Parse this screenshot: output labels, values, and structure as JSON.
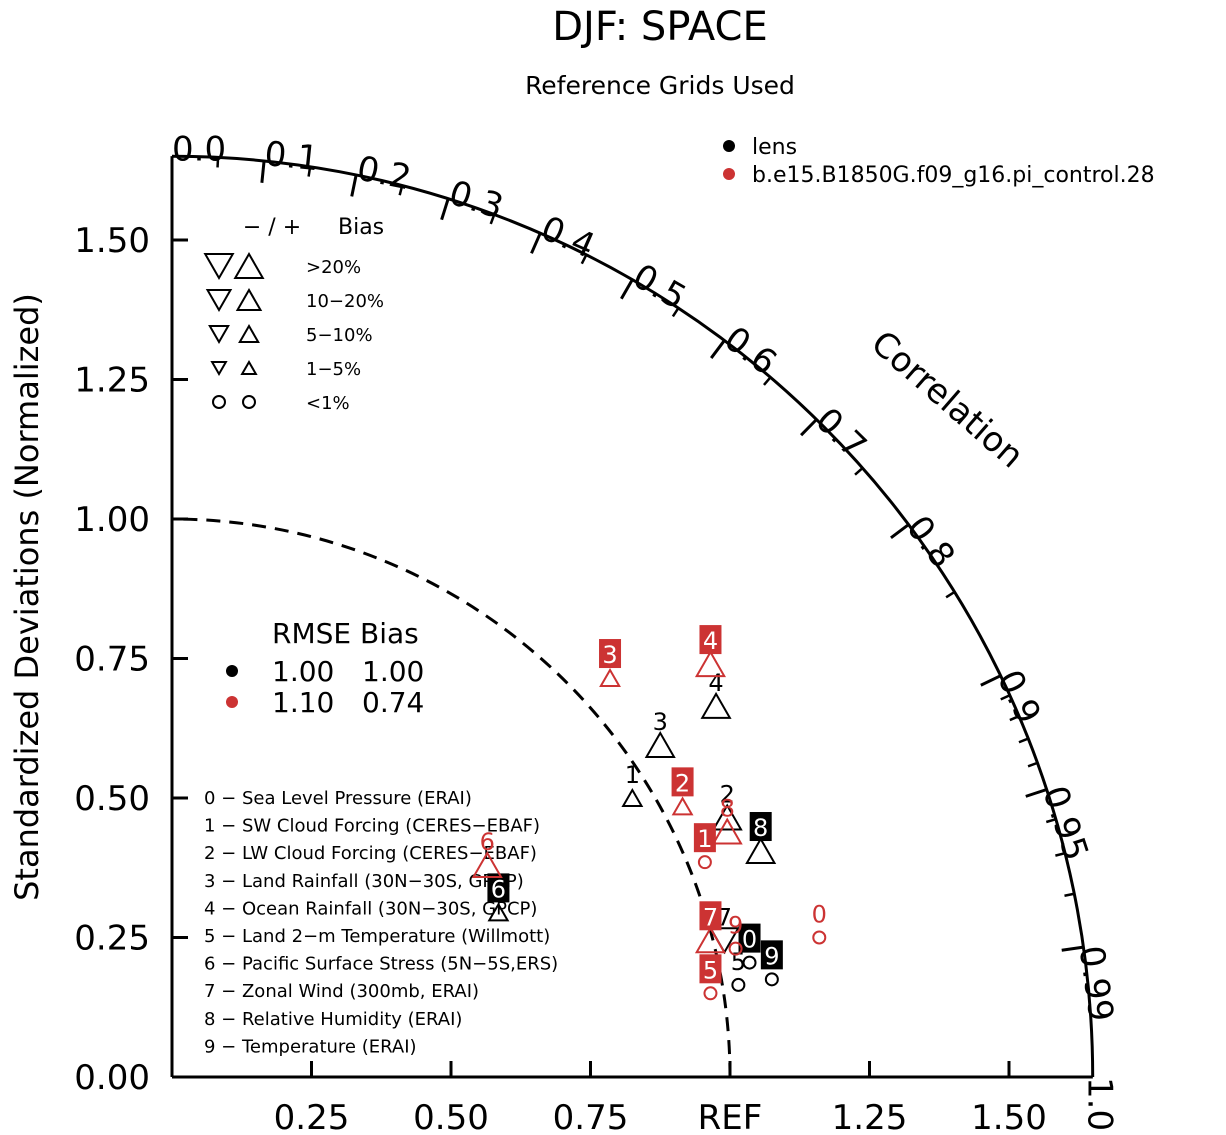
{
  "chart_data": {
    "type": "taylor",
    "title": "DJF: SPACE",
    "subtitle": "Reference Grids Used",
    "ylabel": "Standardized Deviations (Normalized)",
    "xlabel": "",
    "correlation_label": "Correlation",
    "std_range": [
      0,
      1.65
    ],
    "x_ticks": [
      {
        "value": 0.25,
        "label": "0.25"
      },
      {
        "value": 0.5,
        "label": "0.50"
      },
      {
        "value": 0.75,
        "label": "0.75"
      },
      {
        "value": 1.0,
        "label": "REF"
      },
      {
        "value": 1.25,
        "label": "1.25"
      },
      {
        "value": 1.5,
        "label": "1.50"
      }
    ],
    "y_ticks": [
      {
        "value": 0.0,
        "label": "0.00"
      },
      {
        "value": 0.25,
        "label": "0.25"
      },
      {
        "value": 0.5,
        "label": "0.50"
      },
      {
        "value": 0.75,
        "label": "0.75"
      },
      {
        "value": 1.0,
        "label": "1.00"
      },
      {
        "value": 1.25,
        "label": "1.25"
      },
      {
        "value": 1.5,
        "label": "1.50"
      }
    ],
    "correlation_ticks": [
      {
        "value": 0.0,
        "label": "0.0"
      },
      {
        "value": 0.1,
        "label": "0.1"
      },
      {
        "value": 0.2,
        "label": "0.2"
      },
      {
        "value": 0.3,
        "label": "0.3"
      },
      {
        "value": 0.4,
        "label": "0.4"
      },
      {
        "value": 0.5,
        "label": "0.5"
      },
      {
        "value": 0.6,
        "label": "0.6"
      },
      {
        "value": 0.7,
        "label": "0.7"
      },
      {
        "value": 0.8,
        "label": "0.8"
      },
      {
        "value": 0.9,
        "label": "0.9"
      },
      {
        "value": 0.95,
        "label": "0.95"
      },
      {
        "value": 0.99,
        "label": "0.99"
      },
      {
        "value": 1.0,
        "label": "1.0"
      }
    ],
    "series": [
      {
        "name": "lens",
        "color": "#000000",
        "rmse": "1.00",
        "bias": "1.00",
        "points": [
          {
            "id": "0",
            "x": 1.035,
            "y": 0.205,
            "symbol": "circle",
            "size": 0,
            "boxed": true
          },
          {
            "id": "1",
            "x": 0.825,
            "y": 0.5,
            "symbol": "up",
            "size": 1,
            "boxed": false
          },
          {
            "id": "2",
            "x": 0.995,
            "y": 0.465,
            "symbol": "up",
            "size": 3,
            "boxed": false
          },
          {
            "id": "3",
            "x": 0.875,
            "y": 0.595,
            "symbol": "up",
            "size": 3,
            "boxed": false
          },
          {
            "id": "4",
            "x": 0.975,
            "y": 0.665,
            "symbol": "up",
            "size": 3,
            "boxed": false
          },
          {
            "id": "5",
            "x": 1.015,
            "y": 0.165,
            "symbol": "circle",
            "size": 0,
            "boxed": false
          },
          {
            "id": "6",
            "x": 0.585,
            "y": 0.295,
            "symbol": "up",
            "size": 1,
            "boxed": true
          },
          {
            "id": "7",
            "x": 0.99,
            "y": 0.245,
            "symbol": "down",
            "size": 3,
            "boxed": false
          },
          {
            "id": "8",
            "x": 1.055,
            "y": 0.405,
            "symbol": "up",
            "size": 3,
            "boxed": true
          },
          {
            "id": "9",
            "x": 1.075,
            "y": 0.175,
            "symbol": "circle",
            "size": 0,
            "boxed": true
          }
        ]
      },
      {
        "name": "b.e15.B1850G.f09_g16.pi_control.28",
        "color": "#cc3333",
        "rmse": "1.10",
        "bias": "0.74",
        "points": [
          {
            "id": "0",
            "x": 1.16,
            "y": 0.25,
            "symbol": "circle",
            "size": 0,
            "boxed": false
          },
          {
            "id": "1",
            "x": 0.955,
            "y": 0.385,
            "symbol": "circle",
            "size": 0,
            "boxed": true
          },
          {
            "id": "2",
            "x": 0.915,
            "y": 0.485,
            "symbol": "up",
            "size": 1,
            "boxed": true
          },
          {
            "id": "3",
            "x": 0.785,
            "y": 0.715,
            "symbol": "up",
            "size": 1,
            "boxed": true
          },
          {
            "id": "4",
            "x": 0.965,
            "y": 0.74,
            "symbol": "up",
            "size": 3,
            "boxed": true
          },
          {
            "id": "5",
            "x": 0.965,
            "y": 0.15,
            "symbol": "circle",
            "size": 0,
            "boxed": true
          },
          {
            "id": "6",
            "x": 0.565,
            "y": 0.38,
            "symbol": "up",
            "size": 3,
            "boxed": false
          },
          {
            "id": "7",
            "x": 0.965,
            "y": 0.245,
            "symbol": "up",
            "size": 3,
            "boxed": true
          },
          {
            "id": "8",
            "x": 0.995,
            "y": 0.44,
            "symbol": "up",
            "size": 3,
            "boxed": false
          },
          {
            "id": "9",
            "x": 1.01,
            "y": 0.23,
            "symbol": "circle",
            "size": 0,
            "boxed": false
          }
        ]
      }
    ],
    "bias_legend": {
      "header_signs": "− / +",
      "header_label": "Bias",
      "rows": [
        {
          "label": ">20%",
          "symbol": "triangle",
          "size": 3
        },
        {
          "label": "10−20%",
          "symbol": "triangle",
          "size": 2
        },
        {
          "label": "5−10%",
          "symbol": "triangle",
          "size": 1
        },
        {
          "label": "1−5%",
          "symbol": "triangle",
          "size": 0
        },
        {
          "label": "<1%",
          "symbol": "circle",
          "size": 0
        }
      ]
    },
    "stats_header": "RMSE Bias",
    "variables": [
      "0 − Sea Level Pressure (ERAI)",
      "1 − SW Cloud Forcing (CERES−EBAF)",
      "2 − LW Cloud Forcing (CERES−EBAF)",
      "3 − Land Rainfall (30N−30S, GPCP)",
      "4 − Ocean Rainfall (30N−30S, GPCP)",
      "5 − Land 2−m Temperature (Willmott)",
      "6 − Pacific Surface Stress (5N−5S,ERS)",
      "7 − Zonal Wind (300mb, ERAI)",
      "8 − Relative Humidity (ERAI)",
      "9 − Temperature (ERAI)"
    ],
    "grid": false,
    "legend_position": "top-right"
  }
}
